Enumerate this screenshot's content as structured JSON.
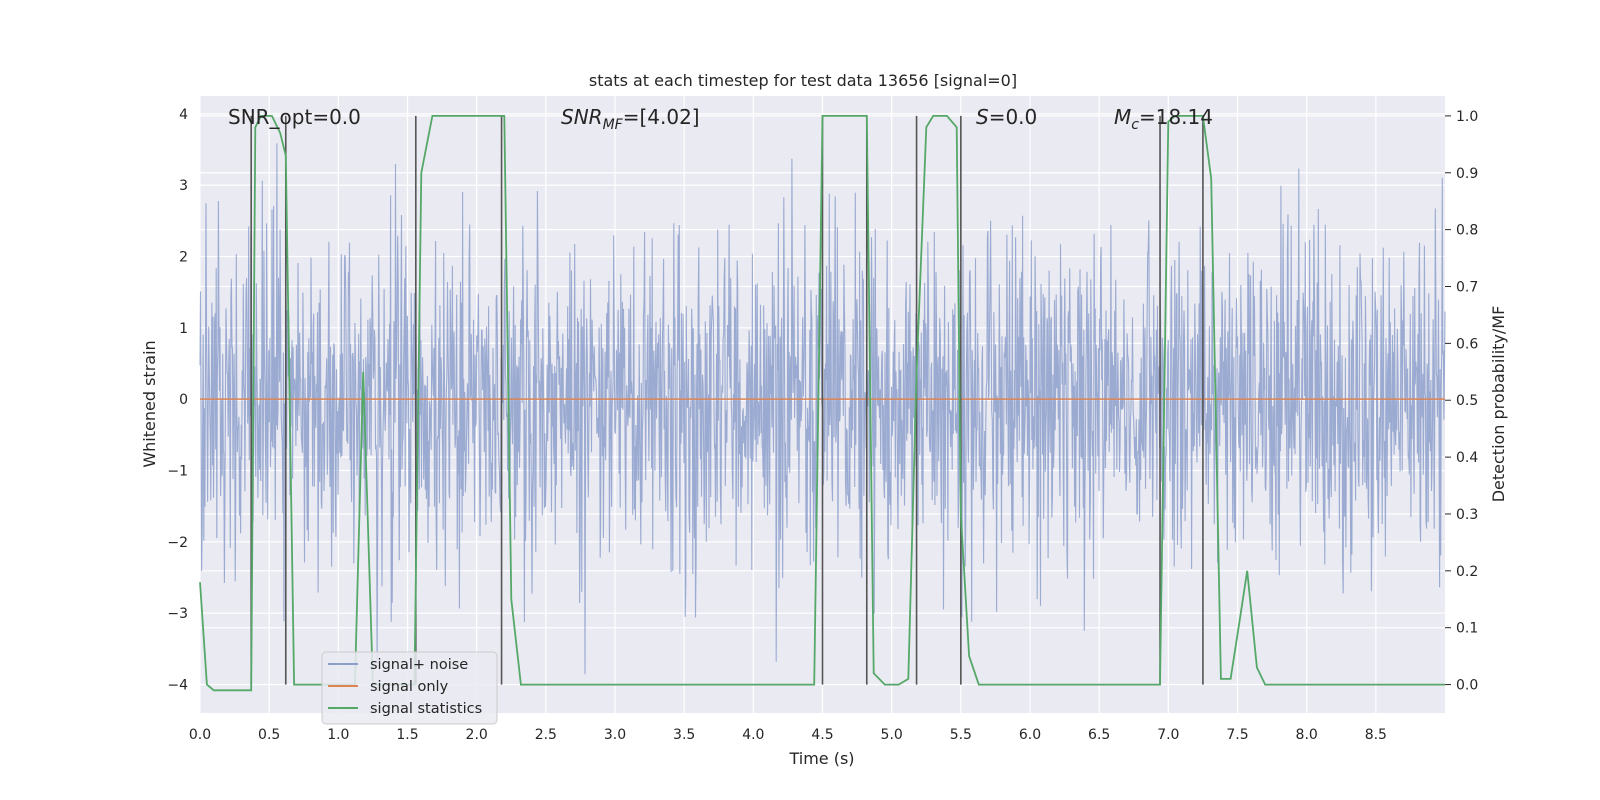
{
  "chart_data": {
    "type": "line",
    "title": "stats at each timestep for test data 13656 [signal=0]",
    "xlabel": "Time (s)",
    "ylabel_left": "Whitened strain",
    "ylabel_right": "Detection probability/MF",
    "xlim": [
      0,
      9.0
    ],
    "ylim_left": [
      -4.4,
      4.25
    ],
    "ylim_right": [
      -0.05,
      1.035
    ],
    "x_ticks": [
      "0.0",
      "0.5",
      "1.0",
      "1.5",
      "2.0",
      "2.5",
      "3.0",
      "3.5",
      "4.0",
      "4.5",
      "5.0",
      "5.5",
      "6.0",
      "6.5",
      "7.0",
      "7.5",
      "8.0",
      "8.5"
    ],
    "y_ticks_left": [
      "−4",
      "−3",
      "−2",
      "−1",
      "0",
      "1",
      "2",
      "3",
      "4"
    ],
    "y_ticks_right": [
      "0.0",
      "0.1",
      "0.2",
      "0.3",
      "0.4",
      "0.5",
      "0.6",
      "0.7",
      "0.8",
      "0.9",
      "1.0"
    ],
    "grid": true,
    "legend_position": "lower-left",
    "legend": [
      "signal+ noise",
      "signal only",
      "signal statistics"
    ],
    "annotations": {
      "snr_opt": "SNR_opt=0.0",
      "snr_mf_main": "SNR",
      "snr_mf_sub": "MF",
      "snr_mf_val": "=[4.02]",
      "s_main": "S",
      "s_val": "=0.0",
      "mc_main": "M",
      "mc_sub": "c",
      "mc_val": "=18.14"
    },
    "series": [
      {
        "name": "signal+ noise",
        "axis": "left",
        "color": "#8c9fcb",
        "description": "whitened strain noise, approximately ±1.5 sigma band with spikes up to about ±4"
      },
      {
        "name": "signal only",
        "axis": "left",
        "color": "#dd8452",
        "x": [
          0,
          9.0
        ],
        "y": [
          0,
          0
        ]
      },
      {
        "name": "signal statistics",
        "axis": "right",
        "color": "#55a868",
        "x": [
          0.0,
          0.05,
          0.1,
          0.2,
          0.37,
          0.4,
          0.44,
          0.52,
          0.58,
          0.62,
          0.68,
          0.9,
          1.07,
          1.12,
          1.18,
          1.25,
          1.3,
          1.42,
          1.55,
          1.6,
          1.68,
          1.75,
          1.9,
          2.05,
          2.2,
          2.25,
          2.32,
          2.5,
          2.7,
          2.9,
          3.5,
          4.0,
          4.44,
          4.5,
          4.55,
          4.6,
          4.7,
          4.8,
          4.82,
          4.87,
          4.95,
          5.05,
          5.12,
          5.18,
          5.25,
          5.3,
          5.4,
          5.47,
          5.5,
          5.56,
          5.63,
          5.8,
          6.2,
          6.6,
          6.94,
          7.0,
          7.05,
          7.15,
          7.25,
          7.31,
          7.38,
          7.45,
          7.52,
          7.57,
          7.64,
          7.7,
          7.8,
          7.9,
          8.2,
          8.6,
          9.0
        ],
        "y": [
          0.18,
          0.0,
          -0.01,
          -0.01,
          -0.01,
          0.98,
          1.0,
          1.0,
          0.97,
          0.93,
          0.0,
          0.0,
          0.0,
          0.0,
          0.55,
          0.0,
          0.0,
          0.0,
          0.0,
          0.9,
          1.0,
          1.0,
          1.0,
          1.0,
          1.0,
          0.15,
          0.0,
          0.0,
          0.0,
          0.0,
          0.0,
          0.0,
          0.0,
          1.0,
          1.0,
          1.0,
          1.0,
          1.0,
          1.0,
          0.02,
          0.0,
          0.0,
          0.01,
          0.55,
          0.98,
          1.0,
          1.0,
          0.98,
          0.3,
          0.05,
          0.0,
          0.0,
          0.0,
          0.0,
          0.0,
          0.99,
          1.0,
          1.0,
          1.0,
          0.89,
          0.01,
          0.01,
          0.12,
          0.2,
          0.03,
          0.0,
          0.0,
          0.0,
          0.0,
          0.0,
          0.0
        ]
      },
      {
        "name": "boundaries",
        "axis": "right",
        "color": "#555555",
        "x": [
          0.37,
          0.62,
          1.56,
          2.18,
          4.5,
          4.82,
          5.18,
          5.5,
          6.94,
          7.25
        ]
      }
    ]
  }
}
